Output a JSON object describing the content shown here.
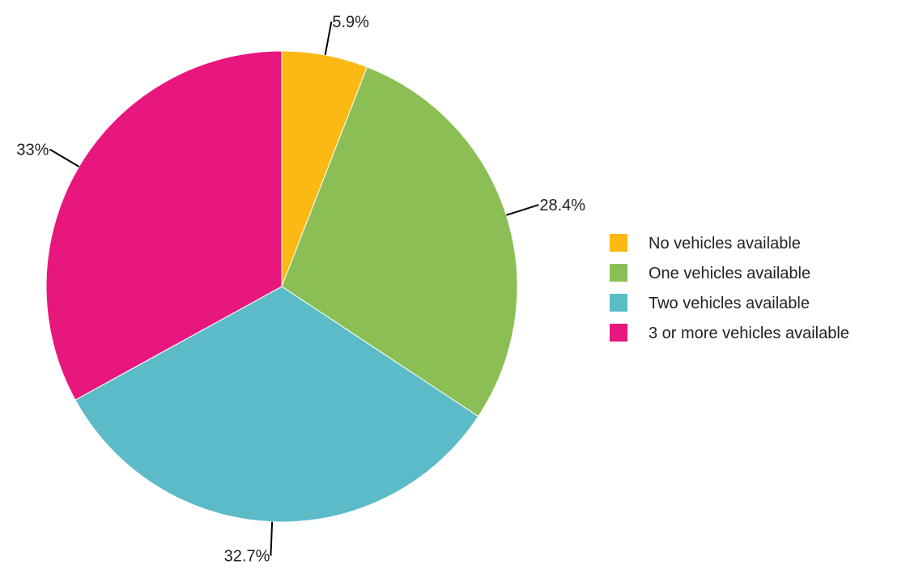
{
  "chart_data": {
    "type": "pie",
    "title": "",
    "categories": [
      "No vehicles available",
      "One vehicles available",
      "Two vehicles available",
      "3 or more vehicles available"
    ],
    "values": [
      5.9,
      28.4,
      32.7,
      33.0
    ],
    "value_labels": [
      "5.9%",
      "28.4%",
      "32.7%",
      "33%"
    ],
    "colors": [
      "#FDB913",
      "#8BBE54",
      "#5BBCC8",
      "#E8177D"
    ],
    "start_angle": "12 o'clock",
    "direction": "clockwise",
    "legend": {
      "placement": "right",
      "items": [
        "No vehicles available",
        "One vehicles available",
        "Two vehicles available",
        "3 or more vehicles available"
      ]
    }
  }
}
